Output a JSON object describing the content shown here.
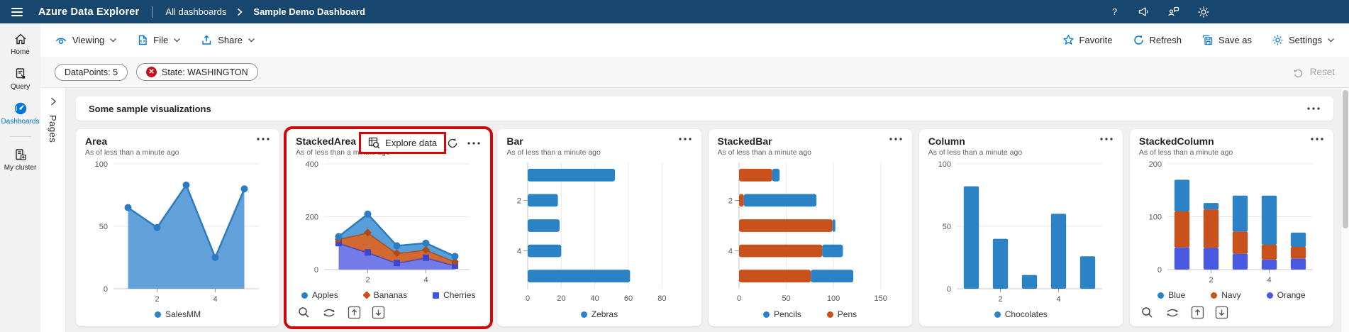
{
  "topbar": {
    "app_title": "Azure Data Explorer",
    "breadcrumb_root": "All dashboards",
    "breadcrumb_current": "Sample Demo Dashboard"
  },
  "toolbar": {
    "viewing_label": "Viewing",
    "file_label": "File",
    "share_label": "Share",
    "favorite_label": "Favorite",
    "refresh_label": "Refresh",
    "save_as_label": "Save as",
    "settings_label": "Settings"
  },
  "filterbar": {
    "pill_datapoints": "DataPoints: 5",
    "pill_state": "State: WASHINGTON",
    "reset_label": "Reset"
  },
  "sidebar": {
    "items": [
      {
        "label": "Home"
      },
      {
        "label": "Query"
      },
      {
        "label": "Dashboards",
        "active": true
      },
      {
        "label": "My cluster"
      }
    ]
  },
  "pages_panel": {
    "label": "Pages"
  },
  "section": {
    "title": "Some sample visualizations"
  },
  "colors": {
    "topbar": "#17476e",
    "accent": "#0078d4",
    "highlight_red": "#cc0a0a",
    "chart_blue": "#2b83c6",
    "chart_orange": "#c8511c",
    "chart_royal": "#4a5ae0"
  },
  "tiles": [
    {
      "title": "Area",
      "subtitle": "As of less than a minute ago",
      "legend": [
        {
          "label": "SalesMM",
          "shape": "circle",
          "color": "#2b83c6"
        }
      ],
      "chart_data": {
        "type": "area",
        "x": [
          1,
          2,
          3,
          4,
          5
        ],
        "ymax": 100,
        "yticks": [
          0,
          50,
          100
        ],
        "xticks": [
          2,
          4
        ],
        "series": [
          {
            "name": "SalesMM",
            "values": [
              65,
              49,
              83,
              25,
              80
            ],
            "color": "#5b9cd9",
            "stroke": "#2b7cc1",
            "marker": "circle",
            "opacity": 0.95
          }
        ]
      }
    },
    {
      "title": "StackedArea",
      "subtitle": "As of less than a minute ago",
      "explore_label": "Explore data",
      "legend": [
        {
          "label": "Apples",
          "shape": "circle",
          "color": "#2b83c6"
        },
        {
          "label": "Bananas",
          "shape": "diamond",
          "color": "#c8511c"
        },
        {
          "label": "Cherries",
          "shape": "square",
          "color": "#4355e0"
        }
      ],
      "chart_data": {
        "type": "stacked-area",
        "x": [
          1,
          2,
          3,
          4,
          5
        ],
        "ymax": 400,
        "yticks": [
          0,
          200,
          400
        ],
        "xticks": [
          2,
          4
        ],
        "series": [
          {
            "name": "Cherries",
            "values": [
              100,
              65,
              25,
              45,
              15
            ],
            "color": "#6b74e8",
            "stroke": "#3b47cf",
            "marker": "square",
            "opacity": 0.95
          },
          {
            "name": "Bananas",
            "values": [
              15,
              75,
              37,
              30,
              15
            ],
            "color": "#cf6125",
            "stroke": "#b04a12",
            "marker": "diamond",
            "opacity": 0.95
          },
          {
            "name": "Apples",
            "values": [
              10,
              70,
              28,
              25,
              20
            ],
            "color": "#4f9ad8",
            "stroke": "#2b7cc1",
            "marker": "circle",
            "opacity": 0.95
          }
        ]
      }
    },
    {
      "title": "Bar",
      "subtitle": "As of less than a minute ago",
      "legend": [
        {
          "label": "Zebras",
          "shape": "circle",
          "color": "#2b83c6"
        }
      ],
      "chart_data": {
        "type": "bar-h",
        "categories": [
          1,
          2,
          3,
          4,
          5
        ],
        "xmax": 90,
        "xticks": [
          0,
          20,
          40,
          60,
          80
        ],
        "cat_ticks": [
          2,
          4
        ],
        "series": [
          {
            "name": "Zebras",
            "values": [
              52,
              18,
              19,
              20,
              61
            ],
            "color": "#2b83c6"
          }
        ]
      }
    },
    {
      "title": "StackedBar",
      "subtitle": "As of less than a minute ago",
      "legend": [
        {
          "label": "Pencils",
          "shape": "circle",
          "color": "#2b83c6"
        },
        {
          "label": "Pens",
          "shape": "circle",
          "color": "#c8511c"
        }
      ],
      "chart_data": {
        "type": "bar-h",
        "stacked": true,
        "categories": [
          1,
          2,
          3,
          4,
          5
        ],
        "xmax": 160,
        "xticks": [
          0,
          50,
          100,
          150
        ],
        "cat_ticks": [
          2,
          4
        ],
        "series": [
          {
            "name": "Pens",
            "values": [
              35,
              5,
              99,
              88,
              76
            ],
            "color": "#c8511c"
          },
          {
            "name": "Pencils",
            "values": [
              8,
              77,
              3,
              22,
              45
            ],
            "color": "#2b83c6"
          }
        ]
      }
    },
    {
      "title": "Column",
      "subtitle": "As of less than a minute ago",
      "legend": [
        {
          "label": "Chocolates",
          "shape": "circle",
          "color": "#2b83c6"
        }
      ],
      "chart_data": {
        "type": "col",
        "categories": [
          1,
          2,
          3,
          4,
          5
        ],
        "ymax": 100,
        "yticks": [
          0,
          50,
          100
        ],
        "xticks": [
          2,
          4
        ],
        "series": [
          {
            "name": "Chocolates",
            "values": [
              82,
              40,
              11,
              60,
              26
            ],
            "color": "#2b83c6"
          }
        ]
      }
    },
    {
      "title": "StackedColumn",
      "subtitle": "As of less than a minute ago",
      "legend": [
        {
          "label": "Blue",
          "shape": "circle",
          "color": "#2b83c6"
        },
        {
          "label": "Navy",
          "shape": "circle",
          "color": "#c8511c"
        },
        {
          "label": "Orange",
          "shape": "circle",
          "color": "#4a5ae0"
        }
      ],
      "chart_data": {
        "type": "col",
        "stacked": true,
        "categories": [
          1,
          2,
          3,
          4,
          5
        ],
        "ymax": 200,
        "yticks": [
          0,
          100,
          200
        ],
        "xticks": [
          2,
          4
        ],
        "series": [
          {
            "name": "Orange",
            "values": [
              42,
              41,
              30,
              19,
              21
            ],
            "color": "#4a5ae0"
          },
          {
            "name": "Navy",
            "values": [
              68,
              73,
              42,
              28,
              22
            ],
            "color": "#c8511c"
          },
          {
            "name": "Blue",
            "values": [
              60,
              12,
              68,
              93,
              27
            ],
            "color": "#2b83c6"
          }
        ]
      }
    }
  ]
}
